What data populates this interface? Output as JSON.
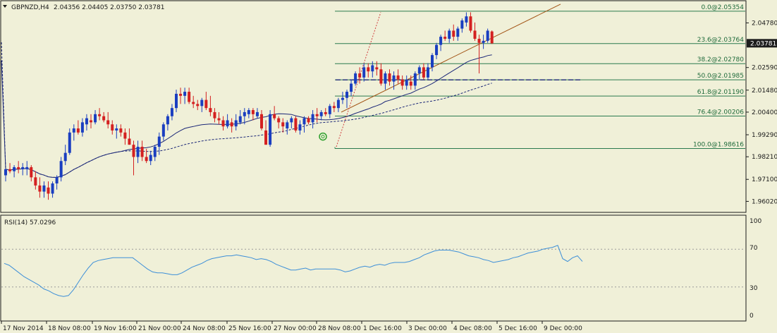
{
  "header": {
    "symbol": "GBPNZD,H4",
    "ohlc": "2.04356 2.04405 2.03750 2.03781"
  },
  "rsi_pane": {
    "label": "RSI(14) 57.0296",
    "levels": [
      "100",
      "70",
      "30",
      "0"
    ]
  },
  "colors": {
    "background": "#f0f0d8",
    "bull": "#1a3ec0",
    "bear": "#d42020",
    "ma": "#1c2878",
    "fib": "#2a7a4e",
    "fib_text": "#1e6a3a",
    "trend": "#a05010",
    "red_dotted": "#d04040",
    "rsi": "#3d8fd8",
    "price_tag": "#1c1c1c",
    "grid": "#9a9a9a",
    "marker": "#2ea02e"
  },
  "chart_data": [
    {
      "type": "candlestick",
      "symbol": "GBPNZD",
      "timeframe": "H4",
      "ylim": [
        1.9555,
        2.058
      ],
      "y_ticks": [
        "2.04780",
        "2.03781",
        "2.02590",
        "2.01480",
        "2.00400",
        "1.99290",
        "1.98210",
        "1.97100",
        "1.96020"
      ],
      "current_price": "2.03781",
      "x_ticks": [
        "17 Nov 2014",
        "18 Nov 08:00",
        "19 Nov 16:00",
        "21 Nov 00:00",
        "24 Nov 08:00",
        "25 Nov 16:00",
        "27 Nov 00:00",
        "28 Nov 08:00",
        "1 Dec 16:00",
        "3 Dec 00:00",
        "4 Dec 08:00",
        "5 Dec 16:00",
        "9 Dec 00:00"
      ],
      "candles": [
        [
          1.973,
          1.976,
          1.97,
          1.976
        ],
        [
          1.976,
          1.979,
          1.974,
          1.975
        ],
        [
          1.975,
          1.978,
          1.972,
          1.977
        ],
        [
          1.977,
          1.98,
          1.974,
          1.976
        ],
        [
          1.976,
          1.979,
          1.973,
          1.977
        ],
        [
          1.976,
          1.98,
          1.973,
          1.977
        ],
        [
          1.977,
          1.978,
          1.97,
          1.972
        ],
        [
          1.972,
          1.975,
          1.966,
          1.968
        ],
        [
          1.968,
          1.972,
          1.962,
          1.965
        ],
        [
          1.965,
          1.97,
          1.962,
          1.968
        ],
        [
          1.967,
          1.97,
          1.961,
          1.964
        ],
        [
          1.964,
          1.97,
          1.962,
          1.969
        ],
        [
          1.969,
          1.973,
          1.966,
          1.972
        ],
        [
          1.972,
          1.982,
          1.97,
          1.98
        ],
        [
          1.98,
          1.988,
          1.978,
          1.984
        ],
        [
          1.984,
          1.996,
          1.983,
          1.994
        ],
        [
          1.994,
          1.998,
          1.99,
          1.996
        ],
        [
          1.996,
          2.0,
          1.993,
          1.994
        ],
        [
          1.994,
          2.001,
          1.992,
          1.999
        ],
        [
          1.998,
          2.003,
          1.995,
          2.001
        ],
        [
          2.0,
          2.003,
          1.996,
          1.999
        ],
        [
          1.999,
          2.005,
          1.998,
          2.003
        ],
        [
          2.003,
          2.006,
          2.0,
          2.002
        ],
        [
          2.002,
          2.004,
          1.999,
          2.0
        ],
        [
          2.0,
          2.004,
          1.996,
          1.998
        ],
        [
          1.998,
          2.0,
          1.993,
          1.995
        ],
        [
          1.995,
          1.998,
          1.991,
          1.996
        ],
        [
          1.996,
          1.998,
          1.992,
          1.994
        ],
        [
          1.994,
          1.996,
          1.988,
          1.991
        ],
        [
          1.991,
          1.996,
          1.988,
          1.988
        ],
        [
          1.988,
          1.99,
          1.973,
          1.982
        ],
        [
          1.982,
          1.99,
          1.979,
          1.987
        ],
        [
          1.987,
          1.99,
          1.98,
          1.982
        ],
        [
          1.982,
          1.986,
          1.979,
          1.98
        ],
        [
          1.98,
          1.985,
          1.978,
          1.983
        ],
        [
          1.982,
          1.988,
          1.98,
          1.987
        ],
        [
          1.987,
          1.994,
          1.983,
          1.992
        ],
        [
          1.992,
          1.999,
          1.99,
          1.998
        ],
        [
          1.998,
          2.003,
          1.995,
          2.002
        ],
        [
          2.002,
          2.008,
          2.0,
          2.006
        ],
        [
          2.006,
          2.015,
          2.004,
          2.013
        ],
        [
          2.013,
          2.016,
          2.008,
          2.012
        ],
        [
          2.012,
          2.016,
          2.008,
          2.014
        ],
        [
          2.014,
          2.016,
          2.008,
          2.009
        ],
        [
          2.009,
          2.012,
          2.006,
          2.008
        ],
        [
          2.008,
          2.01,
          2.005,
          2.007
        ],
        [
          2.007,
          2.011,
          2.004,
          2.01
        ],
        [
          2.01,
          2.014,
          2.005,
          2.006
        ],
        [
          2.006,
          2.012,
          2.002,
          2.004
        ],
        [
          2.004,
          2.006,
          1.999,
          2.001
        ],
        [
          2.001,
          2.004,
          1.998,
          2.0
        ],
        [
          2.0,
          2.002,
          1.995,
          1.997
        ],
        [
          1.997,
          2.003,
          1.996,
          2.0
        ],
        [
          1.999,
          2.001,
          1.994,
          1.997
        ],
        [
          1.997,
          2.003,
          1.995,
          2.0
        ],
        [
          1.999,
          2.005,
          1.998,
          2.002
        ],
        [
          2.002,
          2.006,
          1.998,
          2.004
        ],
        [
          2.003,
          2.006,
          2.001,
          2.005
        ],
        [
          2.005,
          2.006,
          2.0,
          2.003
        ],
        [
          2.002,
          2.006,
          2.001,
          2.004
        ],
        [
          2.003,
          2.005,
          1.995,
          1.996
        ],
        [
          1.995,
          2.0,
          1.988,
          1.988
        ],
        [
          1.988,
          2.005,
          1.987,
          2.003
        ],
        [
          2.003,
          2.007,
          2.0,
          2.001
        ],
        [
          2.001,
          2.002,
          1.996,
          1.999
        ],
        [
          1.999,
          2.001,
          1.994,
          1.997
        ],
        [
          1.996,
          2.0,
          1.993,
          1.999
        ],
        [
          1.999,
          2.002,
          1.996,
          2.001
        ],
        [
          2.001,
          2.002,
          1.994,
          1.995
        ],
        [
          1.995,
          2.0,
          1.993,
          1.998
        ],
        [
          1.998,
          2.002,
          1.994,
          2.001
        ],
        [
          2.001,
          2.002,
          1.998,
          1.999
        ],
        [
          1.999,
          2.005,
          1.996,
          2.003
        ],
        [
          2.003,
          2.006,
          1.999,
          2.002
        ],
        [
          2.002,
          2.005,
          2.0,
          2.004
        ],
        [
          2.004,
          2.006,
          2.002,
          2.003
        ],
        [
          2.003,
          2.008,
          2.001,
          2.007
        ],
        [
          2.007,
          2.009,
          2.004,
          2.006
        ],
        [
          2.006,
          2.011,
          2.004,
          2.01
        ],
        [
          2.01,
          2.014,
          2.008,
          2.011
        ],
        [
          2.011,
          2.015,
          2.006,
          2.014
        ],
        [
          2.014,
          2.02,
          2.012,
          2.018
        ],
        [
          2.018,
          2.024,
          2.017,
          2.023
        ],
        [
          2.023,
          2.026,
          2.018,
          2.021
        ],
        [
          2.021,
          2.028,
          2.019,
          2.026
        ],
        [
          2.026,
          2.028,
          2.021,
          2.024
        ],
        [
          2.024,
          2.029,
          2.021,
          2.027
        ],
        [
          2.026,
          2.029,
          2.022,
          2.025
        ],
        [
          2.025,
          2.028,
          2.017,
          2.018
        ],
        [
          2.018,
          2.024,
          2.015,
          2.023
        ],
        [
          2.023,
          2.025,
          2.017,
          2.019
        ],
        [
          2.019,
          2.024,
          2.015,
          2.022
        ],
        [
          2.022,
          2.025,
          2.018,
          2.02
        ],
        [
          2.02,
          2.022,
          2.015,
          2.017
        ],
        [
          2.017,
          2.022,
          2.015,
          2.02
        ],
        [
          2.019,
          2.022,
          2.015,
          2.017
        ],
        [
          2.017,
          2.024,
          2.015,
          2.023
        ],
        [
          2.023,
          2.027,
          2.02,
          2.026
        ],
        [
          2.026,
          2.028,
          2.02,
          2.021
        ],
        [
          2.021,
          2.028,
          2.02,
          2.026
        ],
        [
          2.026,
          2.033,
          2.024,
          2.032
        ],
        [
          2.032,
          2.038,
          2.03,
          2.037
        ],
        [
          2.037,
          2.042,
          2.034,
          2.041
        ],
        [
          2.041,
          2.044,
          2.039,
          2.04
        ],
        [
          2.04,
          2.045,
          2.038,
          2.044
        ],
        [
          2.044,
          2.047,
          2.039,
          2.041
        ],
        [
          2.041,
          2.046,
          2.039,
          2.045
        ],
        [
          2.045,
          2.05,
          2.043,
          2.049
        ],
        [
          2.048,
          2.053,
          2.046,
          2.051
        ],
        [
          2.051,
          2.053,
          2.043,
          2.044
        ],
        [
          2.044,
          2.048,
          2.039,
          2.04
        ],
        [
          2.04,
          2.042,
          2.023,
          2.038
        ],
        [
          2.038,
          2.042,
          2.035,
          2.039
        ],
        [
          2.039,
          2.045,
          2.038,
          2.044
        ],
        [
          2.0436,
          2.0441,
          2.0375,
          2.0378
        ]
      ],
      "indicators": {
        "fast_ma": "solid navy line",
        "slow_ma": "dashed navy line",
        "price_line": "dashed navy horizontal line at 2.01985"
      },
      "fibonacci": [
        {
          "label": "0.0@2.05354",
          "value": 2.05354
        },
        {
          "label": "23.6@2.03764",
          "value": 2.03764
        },
        {
          "label": "38.2@2.02780",
          "value": 2.0278
        },
        {
          "label": "50.0@2.01985",
          "value": 2.01985
        },
        {
          "label": "61.8@2.01190",
          "value": 2.0119
        },
        {
          "label": "76.4@2.00206",
          "value": 2.00206
        },
        {
          "label": "100.0@1.98616",
          "value": 1.98616
        }
      ]
    },
    {
      "type": "line",
      "name": "RSI(14)",
      "ylim": [
        0,
        100
      ],
      "levels": [
        30,
        70
      ],
      "values": [
        55,
        53,
        49,
        45,
        41,
        38,
        35,
        32,
        28,
        26,
        23,
        21,
        20,
        21,
        27,
        35,
        43,
        50,
        56,
        58,
        59,
        60,
        61,
        61,
        61,
        61,
        61,
        57,
        53,
        49,
        46,
        45,
        45,
        44,
        43,
        43,
        45,
        48,
        51,
        53,
        55,
        58,
        60,
        61,
        62,
        63,
        63,
        64,
        63,
        62,
        61,
        59,
        60,
        59,
        57,
        54,
        52,
        50,
        48,
        48,
        49,
        50,
        48,
        49,
        49,
        49,
        49,
        49,
        48,
        46,
        47,
        49,
        51,
        52,
        51,
        53,
        54,
        53,
        55,
        56,
        56,
        56,
        57,
        59,
        61,
        64,
        66,
        68,
        69,
        69,
        69,
        68,
        67,
        65,
        63,
        62,
        61,
        59,
        58,
        56,
        57,
        58,
        59,
        61,
        62,
        64,
        66,
        67,
        68,
        70,
        71,
        72,
        74,
        60,
        57,
        61,
        63,
        57
      ]
    }
  ]
}
